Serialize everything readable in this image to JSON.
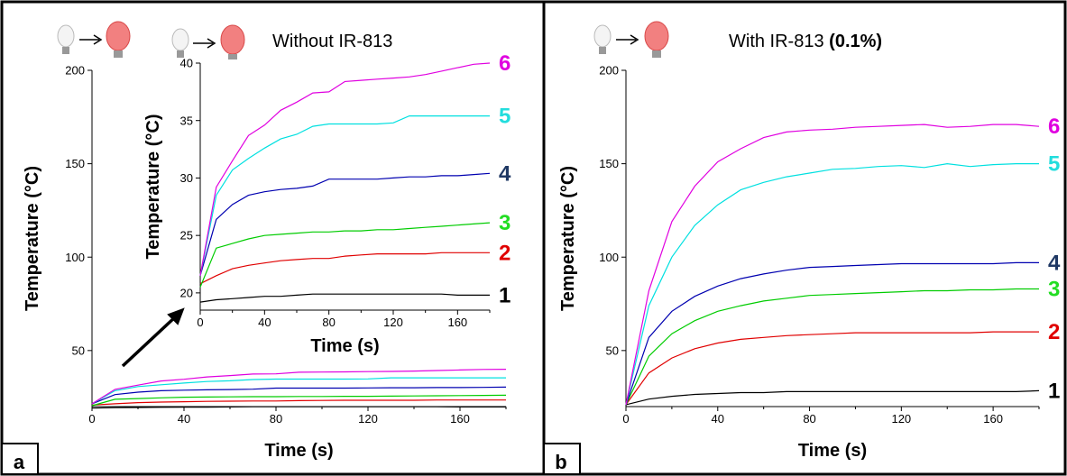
{
  "panels": [
    {
      "letter": "a",
      "title": "Without IR-813",
      "title_bold": ""
    },
    {
      "letter": "b",
      "title": "With IR-813 ",
      "title_bold": "(0.1%)"
    }
  ],
  "colors": {
    "series": [
      "#000000",
      "#e00000",
      "#00cc00",
      "#0000b0",
      "#00e0e0",
      "#e000e0"
    ],
    "labels": [
      "#000000",
      "#e00000",
      "#22dd22",
      "#1f3864",
      "#22dddd",
      "#e000e0"
    ]
  },
  "chart_data": [
    {
      "type": "line",
      "panel": "a",
      "xlabel": "Time (s)",
      "ylabel": "Temperature (°C)",
      "xlim": [
        0,
        180
      ],
      "ylim": [
        20,
        200
      ],
      "xticks": [
        "0",
        "40",
        "80",
        "120",
        "160"
      ],
      "yticks": [
        "50",
        "100",
        "150",
        "200"
      ],
      "x": [
        0,
        10,
        20,
        30,
        40,
        50,
        60,
        70,
        80,
        90,
        100,
        110,
        120,
        130,
        140,
        150,
        160,
        170,
        180
      ],
      "series": [
        {
          "name": "1",
          "values": [
            19.2,
            19.4,
            19.5,
            19.6,
            19.7,
            19.7,
            19.8,
            19.9,
            19.9,
            19.9,
            19.9,
            19.9,
            19.9,
            19.9,
            19.9,
            19.9,
            19.8,
            19.8,
            19.8
          ]
        },
        {
          "name": "2",
          "values": [
            20.8,
            21.5,
            22.1,
            22.4,
            22.6,
            22.8,
            22.9,
            23.0,
            23.0,
            23.2,
            23.3,
            23.4,
            23.4,
            23.4,
            23.4,
            23.5,
            23.5,
            23.5,
            23.5
          ]
        },
        {
          "name": "3",
          "values": [
            20.5,
            23.9,
            24.3,
            24.7,
            25.0,
            25.1,
            25.2,
            25.3,
            25.3,
            25.4,
            25.4,
            25.5,
            25.5,
            25.6,
            25.7,
            25.8,
            25.9,
            26.0,
            26.1
          ]
        },
        {
          "name": "4",
          "values": [
            21.5,
            26.4,
            27.7,
            28.5,
            28.8,
            29.0,
            29.1,
            29.3,
            29.9,
            29.9,
            29.9,
            29.9,
            30.0,
            30.1,
            30.1,
            30.2,
            30.2,
            30.3,
            30.4
          ]
        },
        {
          "name": "5",
          "values": [
            21.5,
            28.5,
            30.7,
            31.7,
            32.6,
            33.4,
            33.8,
            34.5,
            34.7,
            34.7,
            34.7,
            34.7,
            34.8,
            35.4,
            35.4,
            35.4,
            35.4,
            35.4,
            35.4
          ]
        },
        {
          "name": "6",
          "values": [
            21.5,
            29.2,
            31.5,
            33.7,
            34.6,
            35.9,
            36.6,
            37.4,
            37.5,
            38.4,
            38.5,
            38.6,
            38.7,
            38.8,
            39.0,
            39.3,
            39.6,
            39.9,
            40.0
          ]
        }
      ]
    },
    {
      "type": "line",
      "panel": "a-inset",
      "xlabel": "Time (s)",
      "ylabel": "Temperature (°C)",
      "xlim": [
        0,
        180
      ],
      "ylim": [
        18.5,
        40
      ],
      "xticks": [
        "0",
        "40",
        "80",
        "120",
        "160"
      ],
      "yticks": [
        "20",
        "25",
        "30",
        "35",
        "40"
      ],
      "series_ref": "same data as panel a"
    },
    {
      "type": "line",
      "panel": "b",
      "xlabel": "Time (s)",
      "ylabel": "Temperature (°C)",
      "xlim": [
        0,
        180
      ],
      "ylim": [
        20,
        200
      ],
      "xticks": [
        "0",
        "40",
        "80",
        "120",
        "160"
      ],
      "yticks": [
        "50",
        "100",
        "150",
        "200"
      ],
      "x": [
        0,
        10,
        20,
        30,
        40,
        50,
        60,
        70,
        80,
        90,
        100,
        110,
        120,
        130,
        140,
        150,
        160,
        170,
        180
      ],
      "series": [
        {
          "name": "1",
          "values": [
            21,
            24,
            25.5,
            26.5,
            27,
            27.5,
            27.5,
            28,
            28,
            28,
            28,
            28,
            28,
            28,
            28,
            28,
            28,
            28,
            28.5
          ]
        },
        {
          "name": "2",
          "values": [
            21,
            38,
            46,
            51,
            54,
            56,
            57,
            58,
            58.5,
            59,
            59.5,
            59.5,
            59.5,
            59.5,
            59.5,
            59.5,
            60,
            60,
            60
          ]
        },
        {
          "name": "3",
          "values": [
            21,
            47,
            59,
            66,
            71,
            74,
            76.5,
            78,
            79.5,
            80,
            80.5,
            81,
            81.5,
            82,
            82,
            82.5,
            82.5,
            83,
            83
          ]
        },
        {
          "name": "4",
          "values": [
            21,
            57,
            71,
            79,
            84.5,
            88.5,
            91,
            93,
            94.5,
            95,
            95.5,
            96,
            96.5,
            96.5,
            96.5,
            96.5,
            96.5,
            97,
            97
          ]
        },
        {
          "name": "5",
          "values": [
            21,
            74,
            100,
            117,
            128,
            136,
            140,
            143,
            145,
            147,
            147.5,
            148.5,
            149,
            148,
            150,
            148.5,
            149.5,
            150,
            150
          ]
        },
        {
          "name": "6",
          "values": [
            21,
            82,
            119,
            138,
            151,
            158,
            164,
            167,
            168,
            168.5,
            169.5,
            170,
            170.5,
            171,
            169.5,
            170,
            171,
            171,
            170
          ]
        }
      ]
    }
  ]
}
